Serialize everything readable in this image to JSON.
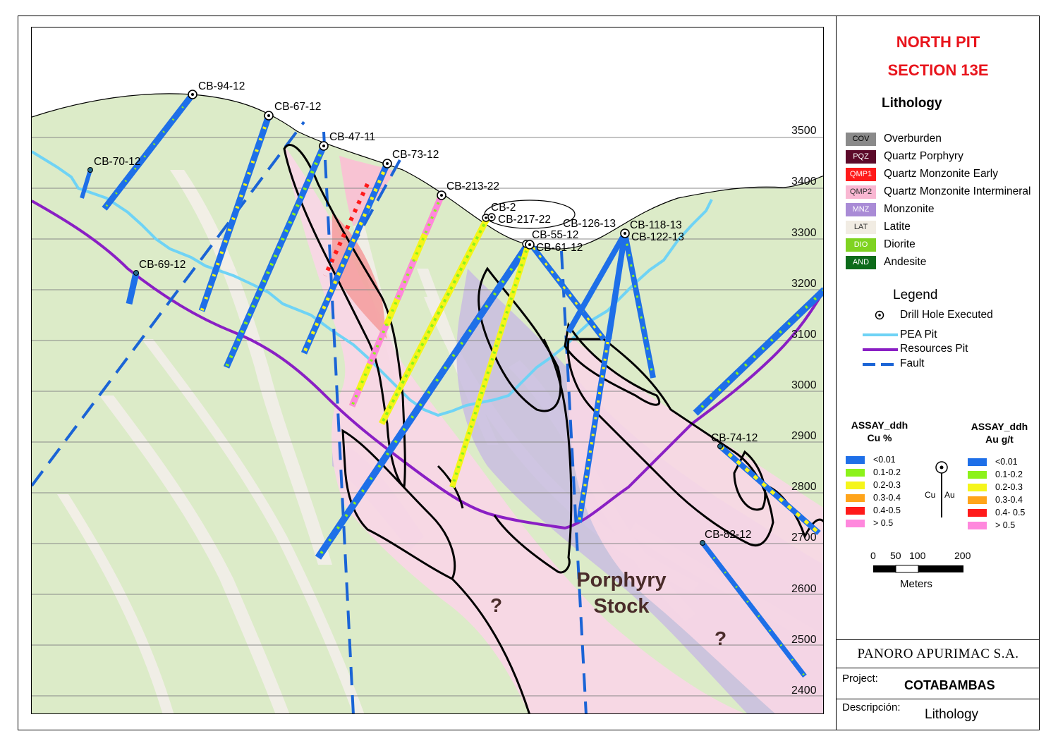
{
  "header": {
    "title_line1": "NORTH PIT",
    "title_line2": "SECTION 13E",
    "lithology_heading": "Lithology",
    "legend_heading": "Legend"
  },
  "lithology": [
    {
      "code": "COV",
      "label": "Overburden",
      "color": "#8a8a8a",
      "code_color": "#000000"
    },
    {
      "code": "PQZ",
      "label": "Quartz Porphyry",
      "color": "#5c0a2a",
      "code_color": "#ffffff"
    },
    {
      "code": "QMP1",
      "label": "Quartz Monzonite Early",
      "color": "#ff1a1a",
      "code_color": "#ffffff"
    },
    {
      "code": "QMP2",
      "label": "Quartz Monzonite Intermineral",
      "color": "#f9b7d2",
      "code_color": "#333333"
    },
    {
      "code": "MNZ",
      "label": "Monzonite",
      "color": "#a98bd6",
      "code_color": "#ffffff"
    },
    {
      "code": "LAT",
      "label": "Latite",
      "color": "#f1ece3",
      "code_color": "#333333"
    },
    {
      "code": "DIO",
      "label": "Diorite",
      "color": "#7fd321",
      "code_color": "#ffffff"
    },
    {
      "code": "AND",
      "label": "Andesite",
      "color": "#0c6b1a",
      "code_color": "#ffffff"
    }
  ],
  "legend": [
    {
      "icon": "drill-hole-icon",
      "label": "Drill Hole Executed"
    },
    {
      "icon": "pea-pit-line-icon",
      "label": "PEA Pit",
      "color": "#6fd3f5"
    },
    {
      "icon": "resources-pit-line-icon",
      "label": "Resources Pit",
      "color": "#8a1fc4"
    },
    {
      "icon": "fault-line-icon",
      "label": "Fault",
      "color": "#1a64d6"
    }
  ],
  "assay_cu": {
    "heading_line1": "ASSAY_ddh",
    "heading_line2": "Cu %",
    "classes": [
      {
        "label": "<0.01",
        "color": "#1e6fe8"
      },
      {
        "label": "0.1-0.2",
        "color": "#8cf21a"
      },
      {
        "label": "0.2-0.3",
        "color": "#f5f51a"
      },
      {
        "label": "0.3-0.4",
        "color": "#ffa41a"
      },
      {
        "label": "0.4-0.5",
        "color": "#ff1a1a"
      },
      {
        "label": "> 0.5",
        "color": "#ff88dd"
      }
    ]
  },
  "assay_au": {
    "heading_line1": "ASSAY_ddh",
    "heading_line2": "Au g/t",
    "classes": [
      {
        "label": "<0.01",
        "color": "#1e6fe8"
      },
      {
        "label": "0.1-0.2",
        "color": "#8cf21a"
      },
      {
        "label": "0.2-0.3",
        "color": "#f5f51a"
      },
      {
        "label": "0.3-0.4",
        "color": "#ffa41a"
      },
      {
        "label": "0.4- 0.5",
        "color": "#ff1a1a"
      },
      {
        "label": "> 0.5",
        "color": "#ff88dd"
      }
    ]
  },
  "hole_symbol": {
    "cu_label": "Cu",
    "au_label": "Au"
  },
  "scale_bar": {
    "ticks": [
      "0",
      "50",
      "100",
      "200"
    ],
    "unit": "Meters"
  },
  "title_block": {
    "company": "PANORO APURIMAC S.A.",
    "project_label": "Project:",
    "project_value": "COTABAMBAS",
    "description_label": "Descripción:",
    "description_value": "Lithology"
  },
  "elevations": [
    "3500",
    "3400",
    "3300",
    "3200",
    "3100",
    "3000",
    "2900",
    "2800",
    "2700",
    "2600",
    "2500",
    "2400"
  ],
  "drill_holes": [
    "CB-94-12",
    "CB-67-12",
    "CB-47-11",
    "CB-73-12",
    "CB-70-12",
    "CB-213-22",
    "CB-2",
    "CB-217-22",
    "CB-126-13",
    "CB-118-13",
    "CB-122-13",
    "CB-55-12",
    "CB-61-12",
    "CB-69-12",
    "CB-74-12",
    "CB-82-12"
  ],
  "map_annotations": {
    "porphyry_line1": "Porphyry",
    "porphyry_line2": "Stock",
    "unknown_1": "?",
    "unknown_2": "?"
  }
}
